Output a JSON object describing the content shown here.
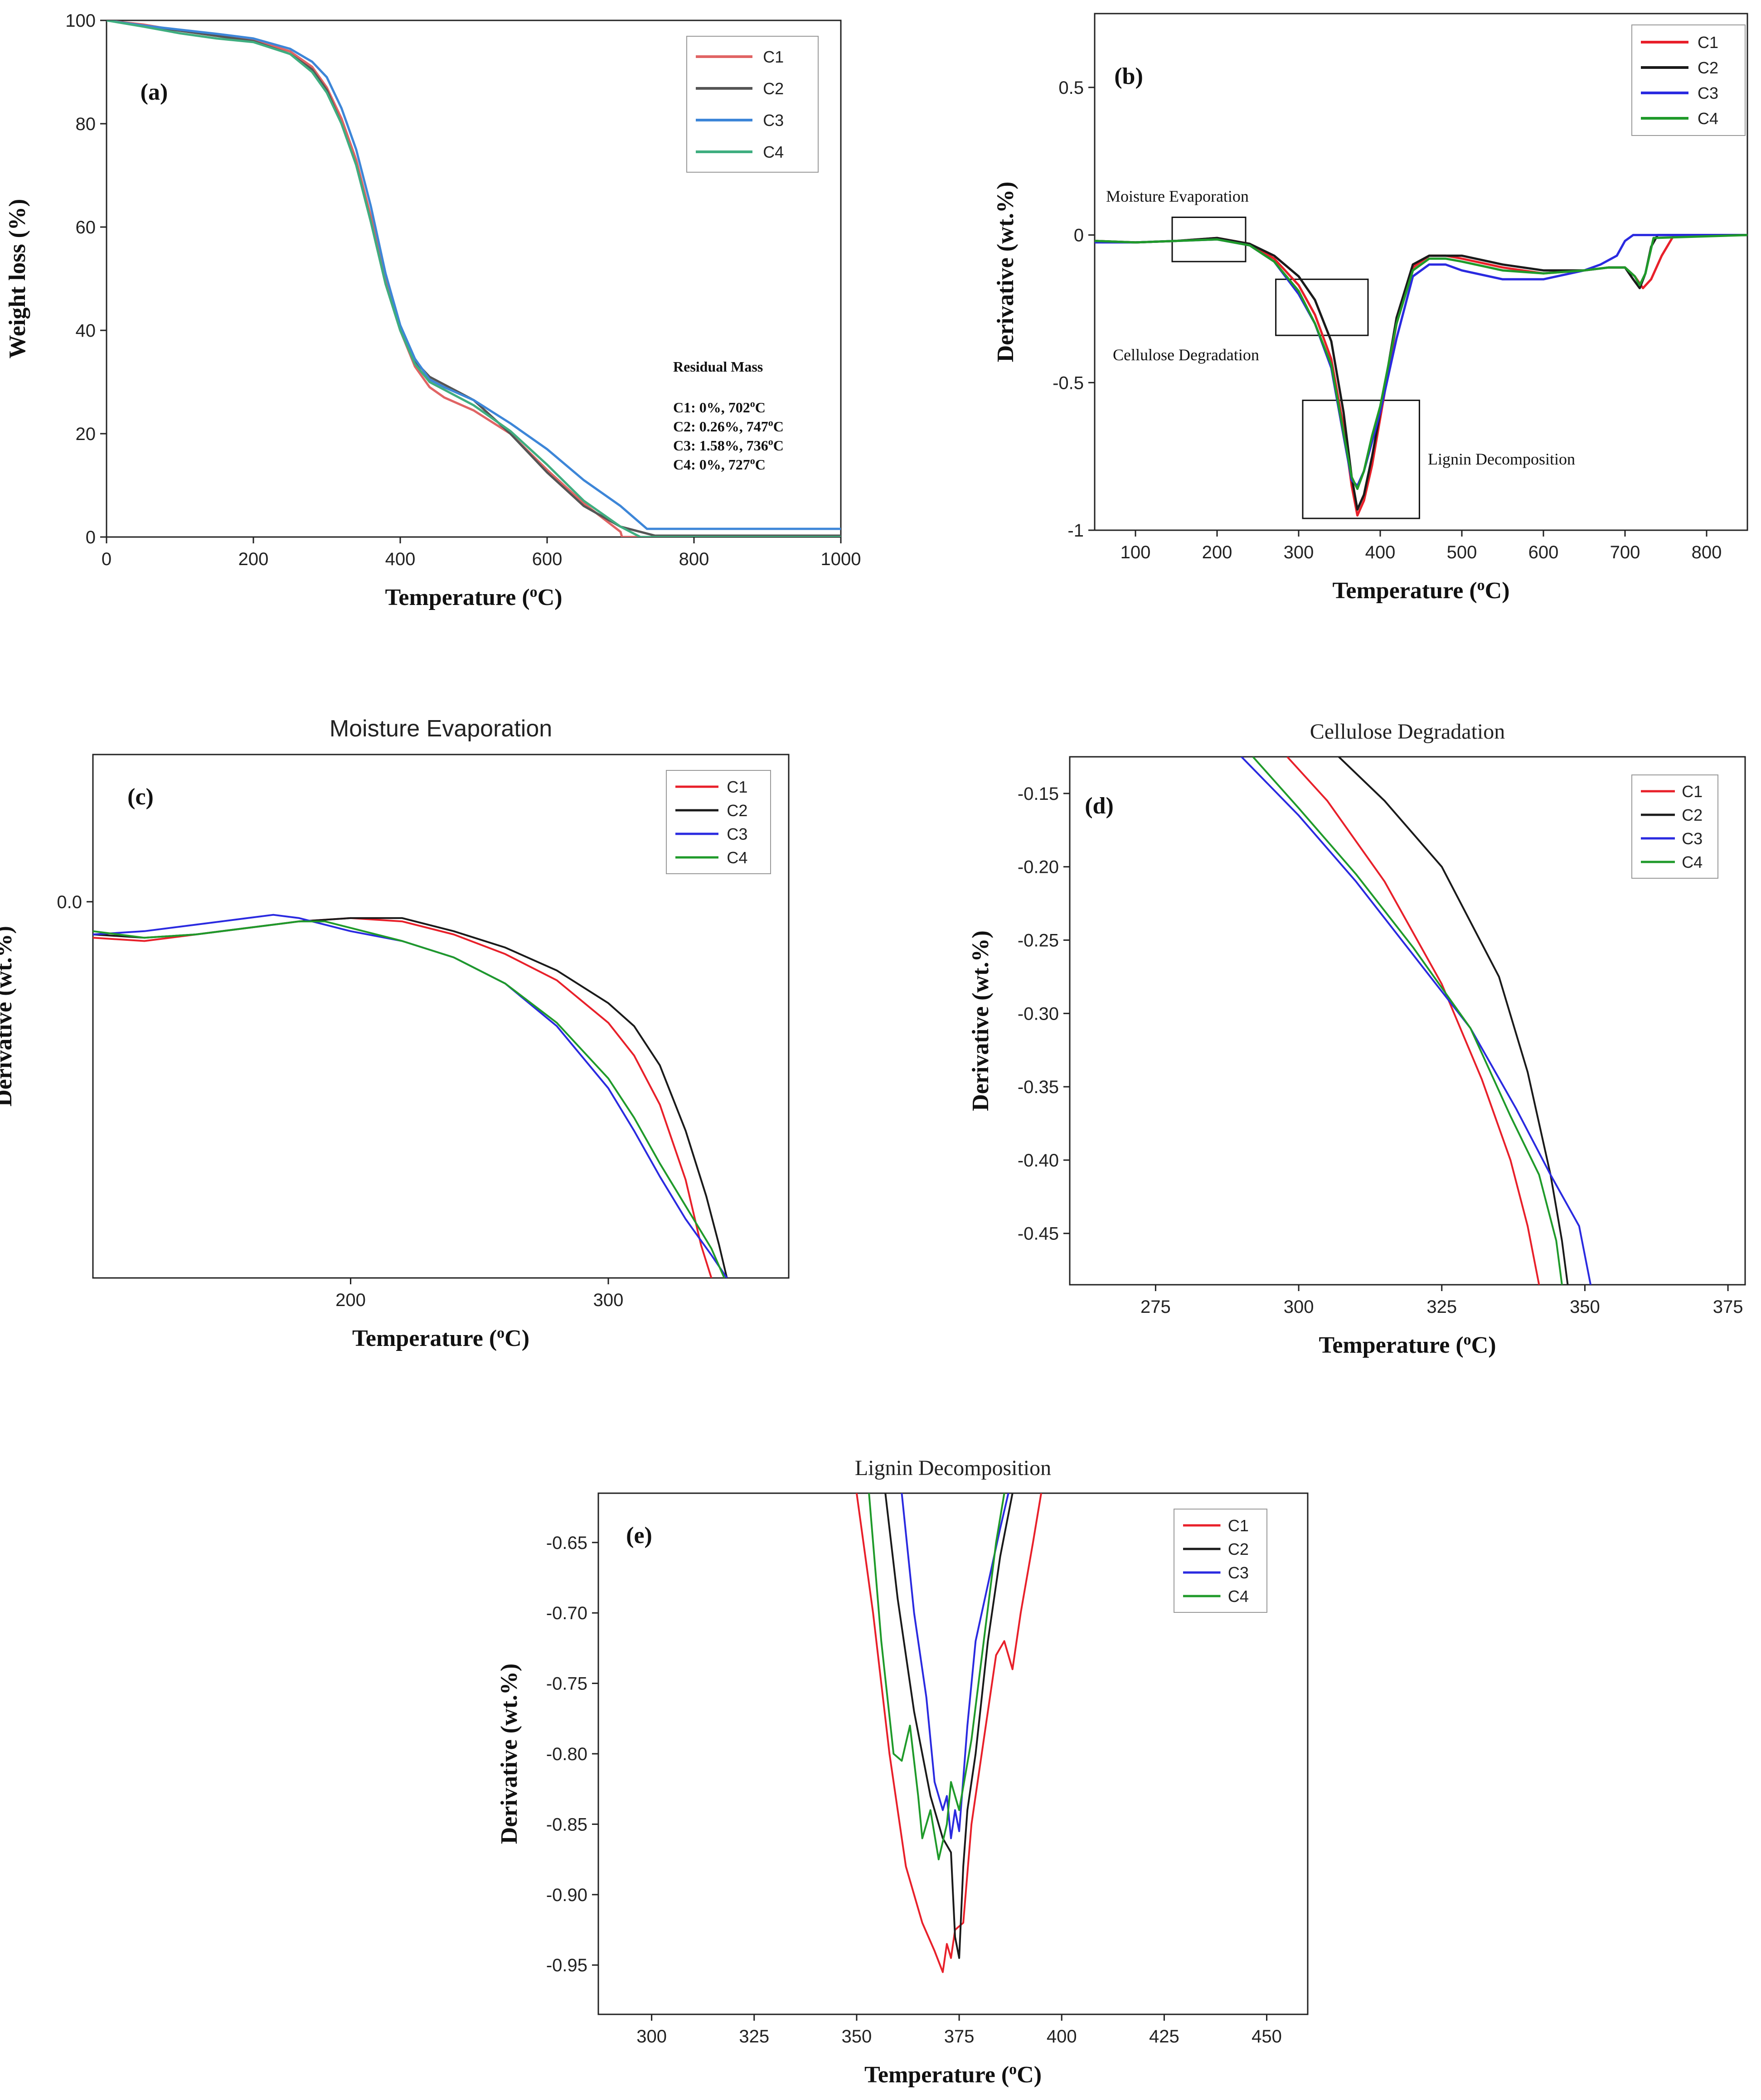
{
  "colors": {
    "C1": "#e8202a",
    "C2": "#1a1a1a",
    "C3": "#2a2ae0",
    "C4": "#1f9a2a",
    "C3a": "#3d86d8",
    "C4a": "#3fae80",
    "C1a": "#e06464",
    "C2a": "#555555"
  },
  "chart_data": [
    {
      "id": "a",
      "type": "line",
      "panel_label": "(a)",
      "title": "",
      "xlabel": "Temperature (°C)",
      "ylabel": "Weight loss (%)",
      "xlim": [
        0,
        1000
      ],
      "ylim": [
        0,
        100
      ],
      "xticks": [
        0,
        200,
        400,
        600,
        800,
        1000
      ],
      "yticks": [
        0,
        20,
        40,
        60,
        80,
        100
      ],
      "legend": [
        "C1",
        "C2",
        "C3",
        "C4"
      ],
      "residual_mass": {
        "title": "Residual Mass",
        "entries": [
          "C1: 0%, 702°C",
          "C2: 0.26%, 747°C",
          "C3: 1.58%, 736°C",
          "C4: 0%, 727°C"
        ]
      },
      "series": [
        {
          "name": "C1",
          "x": [
            0,
            50,
            100,
            150,
            200,
            250,
            280,
            300,
            320,
            340,
            360,
            380,
            400,
            420,
            440,
            460,
            500,
            550,
            600,
            650,
            700,
            702,
            1000
          ],
          "y": [
            100,
            99.2,
            98,
            97,
            96.2,
            94,
            91,
            87,
            81,
            73,
            62,
            50,
            40,
            33,
            29,
            27,
            24.5,
            20,
            13,
            6.5,
            1,
            0,
            0
          ]
        },
        {
          "name": "C2",
          "x": [
            0,
            50,
            100,
            150,
            200,
            250,
            280,
            300,
            320,
            340,
            360,
            380,
            400,
            420,
            440,
            460,
            500,
            550,
            600,
            650,
            700,
            747,
            1000
          ],
          "y": [
            100,
            99,
            98,
            97,
            96,
            93.5,
            90.5,
            86.5,
            80,
            72,
            61,
            49,
            40,
            34,
            31,
            29.5,
            26.5,
            20,
            12.5,
            6,
            2,
            0.26,
            0.26
          ]
        },
        {
          "name": "C3",
          "x": [
            0,
            50,
            100,
            150,
            200,
            250,
            280,
            300,
            320,
            340,
            360,
            380,
            400,
            420,
            440,
            460,
            500,
            550,
            600,
            650,
            700,
            736,
            1000
          ],
          "y": [
            100,
            99,
            98.2,
            97.4,
            96.5,
            94.5,
            92,
            89,
            83,
            75,
            64,
            51,
            41,
            34.5,
            30.5,
            29,
            26.5,
            22,
            17,
            11,
            6,
            1.58,
            1.58
          ]
        },
        {
          "name": "C4",
          "x": [
            0,
            50,
            100,
            150,
            200,
            250,
            280,
            300,
            320,
            340,
            360,
            380,
            400,
            420,
            440,
            460,
            500,
            550,
            600,
            650,
            700,
            727,
            1000
          ],
          "y": [
            100,
            98.8,
            97.5,
            96.5,
            95.8,
            93.5,
            90,
            86,
            80,
            72,
            61,
            49,
            40,
            33.5,
            30,
            28.5,
            25.5,
            20.5,
            14,
            7,
            2,
            0,
            0
          ]
        }
      ]
    },
    {
      "id": "b",
      "type": "line",
      "panel_label": "(b)",
      "title": "",
      "xlabel": "Temperature (°C)",
      "ylabel": "Derivative (wt.%)",
      "xlim": [
        50,
        850
      ],
      "ylim": [
        -1.0,
        0.75
      ],
      "xticks": [
        100,
        200,
        300,
        400,
        500,
        600,
        700,
        800
      ],
      "yticks": [
        -1.0,
        -0.5,
        0.0,
        0.5
      ],
      "legend": [
        "C1",
        "C2",
        "C3",
        "C4"
      ],
      "annotations": [
        {
          "text": "Moisture Evaporation",
          "box": {
            "x": [
              145,
              235
            ],
            "y": [
              -0.09,
              0.06
            ]
          }
        },
        {
          "text": "Cellulose Degradation",
          "box": {
            "x": [
              272,
              385
            ],
            "y": [
              -0.34,
              -0.15
            ]
          }
        },
        {
          "text": "Lignin Decomposition",
          "box": {
            "x": [
              305,
              448
            ],
            "y": [
              -0.96,
              -0.56
            ]
          }
        }
      ],
      "series": [
        {
          "name": "C1",
          "x": [
            50,
            100,
            150,
            200,
            240,
            270,
            300,
            320,
            340,
            355,
            365,
            372,
            380,
            390,
            400,
            420,
            440,
            460,
            480,
            500,
            550,
            600,
            650,
            680,
            700,
            712,
            722,
            732,
            745,
            760,
            850
          ],
          "y": [
            -0.02,
            -0.025,
            -0.02,
            -0.01,
            -0.03,
            -0.08,
            -0.17,
            -0.27,
            -0.42,
            -0.65,
            -0.85,
            -0.95,
            -0.9,
            -0.78,
            -0.62,
            -0.3,
            -0.11,
            -0.07,
            -0.07,
            -0.08,
            -0.11,
            -0.13,
            -0.12,
            -0.11,
            -0.11,
            -0.14,
            -0.18,
            -0.15,
            -0.07,
            0,
            0
          ]
        },
        {
          "name": "C2",
          "x": [
            50,
            100,
            150,
            200,
            240,
            270,
            300,
            320,
            340,
            355,
            365,
            372,
            380,
            390,
            400,
            420,
            440,
            460,
            480,
            500,
            550,
            600,
            650,
            680,
            700,
            710,
            718,
            725,
            732,
            740,
            850
          ],
          "y": [
            -0.02,
            -0.025,
            -0.02,
            -0.01,
            -0.03,
            -0.07,
            -0.14,
            -0.22,
            -0.36,
            -0.6,
            -0.82,
            -0.93,
            -0.88,
            -0.75,
            -0.6,
            -0.28,
            -0.1,
            -0.07,
            -0.07,
            -0.07,
            -0.1,
            -0.12,
            -0.12,
            -0.11,
            -0.11,
            -0.15,
            -0.18,
            -0.13,
            -0.04,
            0,
            0
          ]
        },
        {
          "name": "C3",
          "x": [
            50,
            100,
            150,
            200,
            240,
            270,
            300,
            320,
            340,
            355,
            365,
            372,
            380,
            390,
            400,
            420,
            440,
            460,
            480,
            500,
            550,
            600,
            650,
            670,
            690,
            700,
            710,
            850
          ],
          "y": [
            -0.025,
            -0.025,
            -0.02,
            -0.015,
            -0.035,
            -0.09,
            -0.2,
            -0.3,
            -0.45,
            -0.68,
            -0.83,
            -0.85,
            -0.8,
            -0.7,
            -0.6,
            -0.35,
            -0.14,
            -0.1,
            -0.1,
            -0.12,
            -0.15,
            -0.15,
            -0.12,
            -0.1,
            -0.07,
            -0.02,
            0,
            0
          ]
        },
        {
          "name": "C4",
          "x": [
            50,
            100,
            150,
            200,
            240,
            270,
            300,
            320,
            340,
            355,
            365,
            372,
            380,
            390,
            400,
            420,
            440,
            460,
            480,
            500,
            550,
            600,
            650,
            680,
            700,
            712,
            718,
            725,
            735,
            850
          ],
          "y": [
            -0.02,
            -0.025,
            -0.02,
            -0.015,
            -0.035,
            -0.09,
            -0.19,
            -0.3,
            -0.44,
            -0.67,
            -0.82,
            -0.86,
            -0.8,
            -0.68,
            -0.58,
            -0.3,
            -0.12,
            -0.08,
            -0.08,
            -0.09,
            -0.12,
            -0.13,
            -0.12,
            -0.11,
            -0.11,
            -0.14,
            -0.17,
            -0.13,
            -0.01,
            0
          ]
        }
      ]
    },
    {
      "id": "c",
      "type": "line",
      "panel_label": "(c)",
      "title": "Moisture Evaporation",
      "xlabel": "Temperature (°C)",
      "ylabel": "Derivative (wt.%)",
      "xlim": [
        100,
        370
      ],
      "ylim": [
        -0.115,
        0.045
      ],
      "xticks": [
        200,
        300
      ],
      "yticks": [
        0.0
      ],
      "ytick_labels": [
        "0.0"
      ],
      "legend": [
        "C1",
        "C2",
        "C3",
        "C4"
      ],
      "series": [
        {
          "name": "C1",
          "x": [
            100,
            120,
            140,
            160,
            180,
            200,
            220,
            240,
            260,
            280,
            300,
            310,
            320,
            330,
            336,
            340
          ],
          "y": [
            -0.011,
            -0.012,
            -0.01,
            -0.008,
            -0.006,
            -0.005,
            -0.006,
            -0.01,
            -0.016,
            -0.024,
            -0.037,
            -0.047,
            -0.062,
            -0.085,
            -0.105,
            -0.115
          ]
        },
        {
          "name": "C2",
          "x": [
            100,
            120,
            140,
            160,
            180,
            200,
            220,
            240,
            260,
            280,
            300,
            310,
            320,
            330,
            338,
            343,
            346
          ],
          "y": [
            -0.01,
            -0.011,
            -0.01,
            -0.008,
            -0.006,
            -0.005,
            -0.005,
            -0.009,
            -0.014,
            -0.021,
            -0.031,
            -0.038,
            -0.05,
            -0.07,
            -0.09,
            -0.105,
            -0.115
          ]
        },
        {
          "name": "C3",
          "x": [
            100,
            120,
            140,
            160,
            170,
            180,
            200,
            220,
            240,
            260,
            280,
            300,
            310,
            320,
            330,
            340,
            346
          ],
          "y": [
            -0.01,
            -0.009,
            -0.007,
            -0.005,
            -0.004,
            -0.005,
            -0.009,
            -0.012,
            -0.017,
            -0.025,
            -0.038,
            -0.057,
            -0.07,
            -0.084,
            -0.097,
            -0.108,
            -0.115
          ]
        },
        {
          "name": "C4",
          "x": [
            100,
            120,
            140,
            160,
            180,
            190,
            200,
            220,
            240,
            260,
            280,
            300,
            310,
            320,
            330,
            340,
            345
          ],
          "y": [
            -0.009,
            -0.011,
            -0.01,
            -0.008,
            -0.006,
            -0.006,
            -0.008,
            -0.012,
            -0.017,
            -0.025,
            -0.037,
            -0.054,
            -0.066,
            -0.08,
            -0.093,
            -0.106,
            -0.115
          ]
        }
      ]
    },
    {
      "id": "d",
      "type": "line",
      "panel_label": "(d)",
      "title": "Cellulose Degradation",
      "xlabel": "Temperature (°C)",
      "ylabel": "Derivative (wt.%)",
      "xlim": [
        260,
        378
      ],
      "ylim": [
        -0.485,
        -0.125
      ],
      "xticks": [
        275,
        300,
        325,
        350,
        375
      ],
      "yticks": [
        -0.15,
        -0.2,
        -0.25,
        -0.3,
        -0.35,
        -0.4,
        -0.45
      ],
      "ytick_labels": [
        "-0.15",
        "-0.20",
        "-0.25",
        "-0.30",
        "-0.35",
        "-0.40",
        "-0.45"
      ],
      "legend": [
        "C1",
        "C2",
        "C3",
        "C4"
      ],
      "series": [
        {
          "name": "C1",
          "x": [
            298,
            305,
            315,
            325,
            332,
            337,
            340,
            342
          ],
          "y": [
            -0.125,
            -0.155,
            -0.21,
            -0.28,
            -0.345,
            -0.4,
            -0.445,
            -0.485
          ]
        },
        {
          "name": "C2",
          "x": [
            307,
            315,
            325,
            335,
            340,
            344,
            346,
            347
          ],
          "y": [
            -0.125,
            -0.155,
            -0.2,
            -0.275,
            -0.34,
            -0.41,
            -0.455,
            -0.485
          ]
        },
        {
          "name": "C3",
          "x": [
            290,
            300,
            310,
            320,
            330,
            338,
            344,
            349,
            351
          ],
          "y": [
            -0.125,
            -0.165,
            -0.21,
            -0.26,
            -0.31,
            -0.365,
            -0.41,
            -0.445,
            -0.485
          ]
        },
        {
          "name": "C4",
          "x": [
            292,
            300,
            310,
            320,
            330,
            337,
            342,
            345,
            346
          ],
          "y": [
            -0.125,
            -0.16,
            -0.205,
            -0.255,
            -0.31,
            -0.37,
            -0.41,
            -0.455,
            -0.485
          ]
        }
      ]
    },
    {
      "id": "e",
      "type": "line",
      "panel_label": "(e)",
      "title": "Lignin Decomposition",
      "xlabel": "Temperature (°C)",
      "ylabel": "Derivative (wt.%)",
      "xlim": [
        287,
        460
      ],
      "ylim": [
        -0.985,
        -0.615
      ],
      "xticks": [
        300,
        325,
        350,
        375,
        400,
        425,
        450
      ],
      "yticks": [
        -0.65,
        -0.7,
        -0.75,
        -0.8,
        -0.85,
        -0.9,
        -0.95
      ],
      "ytick_labels": [
        "-0.65",
        "-0.70",
        "-0.75",
        "-0.80",
        "-0.85",
        "-0.90",
        "-0.95"
      ],
      "legend": [
        "C1",
        "C2",
        "C3",
        "C4"
      ],
      "series": [
        {
          "name": "C1",
          "x": [
            350,
            354,
            358,
            362,
            366,
            369,
            371,
            372,
            373,
            374,
            376,
            378,
            381,
            384,
            386,
            388,
            390,
            393,
            395
          ],
          "y": [
            -0.615,
            -0.7,
            -0.8,
            -0.88,
            -0.92,
            -0.94,
            -0.955,
            -0.935,
            -0.945,
            -0.925,
            -0.92,
            -0.85,
            -0.79,
            -0.73,
            -0.72,
            -0.74,
            -0.7,
            -0.65,
            -0.615
          ]
        },
        {
          "name": "C2",
          "x": [
            357,
            360,
            364,
            368,
            371,
            373,
            374,
            375,
            376,
            377,
            379,
            382,
            385,
            388
          ],
          "y": [
            -0.615,
            -0.69,
            -0.77,
            -0.83,
            -0.86,
            -0.87,
            -0.93,
            -0.945,
            -0.88,
            -0.84,
            -0.8,
            -0.72,
            -0.66,
            -0.615
          ]
        },
        {
          "name": "C3",
          "x": [
            361,
            364,
            367,
            369,
            371,
            372,
            373,
            374,
            375,
            377,
            379,
            382,
            385,
            387
          ],
          "y": [
            -0.615,
            -0.7,
            -0.76,
            -0.82,
            -0.84,
            -0.83,
            -0.86,
            -0.84,
            -0.855,
            -0.78,
            -0.72,
            -0.68,
            -0.64,
            -0.615
          ]
        },
        {
          "name": "C4",
          "x": [
            353,
            356,
            359,
            361,
            363,
            365,
            366,
            368,
            370,
            372,
            373,
            375,
            378,
            381,
            384,
            386
          ],
          "y": [
            -0.615,
            -0.72,
            -0.8,
            -0.805,
            -0.78,
            -0.83,
            -0.86,
            -0.84,
            -0.875,
            -0.85,
            -0.82,
            -0.84,
            -0.79,
            -0.72,
            -0.65,
            -0.615
          ]
        }
      ]
    }
  ]
}
